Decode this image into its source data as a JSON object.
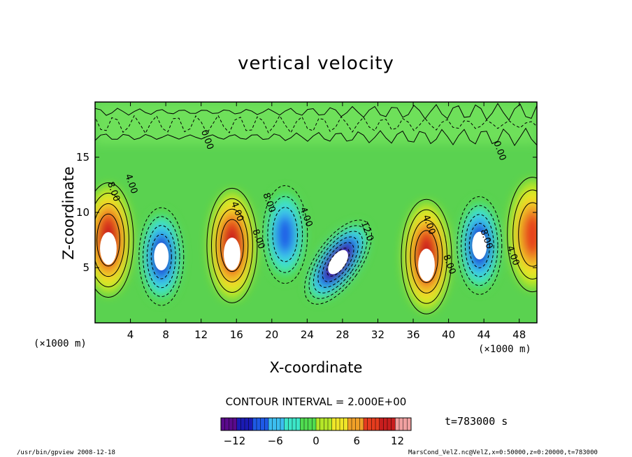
{
  "chart_data": {
    "type": "heatmap",
    "title": "vertical velocity",
    "xlabel": "X-coordinate",
    "ylabel": "Z-coordinate",
    "x_unit": "(×1000 m)",
    "y_unit": "(×1000 m)",
    "xlim": [
      0,
      50
    ],
    "ylim": [
      0,
      20
    ],
    "x_ticks": [
      "4",
      "8",
      "12",
      "16",
      "20",
      "24",
      "28",
      "32",
      "36",
      "40",
      "44",
      "48"
    ],
    "y_ticks": [
      "5",
      "10",
      "15"
    ],
    "contour_interval_text": "CONTOUR INTERVAL = 2.000E+00",
    "colorbar": {
      "ticks": [
        "−12",
        "−6",
        "0",
        "6",
        "12"
      ],
      "values": [
        -12,
        -6,
        0,
        6,
        12
      ],
      "range": [
        -14,
        14
      ],
      "colors": [
        "#5a0a8c",
        "#1a1ab4",
        "#1e5ae6",
        "#3cbef0",
        "#3ce6c8",
        "#50dc50",
        "#b4e628",
        "#f0e628",
        "#f0a028",
        "#e63c1e",
        "#c81e1e",
        "#f0a0a0"
      ]
    },
    "features": [
      {
        "x": 1.5,
        "z": 7.5,
        "w": 8,
        "type": "updraft"
      },
      {
        "x": 7.5,
        "z": 6.0,
        "w": -8,
        "type": "downdraft"
      },
      {
        "x": 15.5,
        "z": 7.0,
        "w": 8,
        "type": "updraft"
      },
      {
        "x": 21.5,
        "z": 8.0,
        "w": -6,
        "type": "downdraft"
      },
      {
        "x": 27.5,
        "z": 5.5,
        "w": -12,
        "type": "downdraft"
      },
      {
        "x": 37.5,
        "z": 6.0,
        "w": 8,
        "type": "updraft"
      },
      {
        "x": 43.5,
        "z": 7.0,
        "w": -8,
        "type": "downdraft"
      },
      {
        "x": 49.5,
        "z": 8.0,
        "w": 6,
        "type": "updraft"
      }
    ],
    "contour_labels": [
      {
        "text": "8.00",
        "x": 1.8,
        "z": 11.8
      },
      {
        "text": "4.00",
        "x": 3.8,
        "z": 12.5
      },
      {
        "text": "4.00",
        "x": 15.8,
        "z": 10.0
      },
      {
        "text": "8.00",
        "x": 18.2,
        "z": 7.5
      },
      {
        "text": "8.00",
        "x": 19.4,
        "z": 10.8
      },
      {
        "text": "4.00",
        "x": 23.6,
        "z": 9.5
      },
      {
        "text": "12.0",
        "x": 30.5,
        "z": 8.2
      },
      {
        "text": "4.00",
        "x": 37.5,
        "z": 8.8
      },
      {
        "text": "8.00",
        "x": 39.8,
        "z": 5.2
      },
      {
        "text": "8.00",
        "x": 44.0,
        "z": 7.5
      },
      {
        "text": "4.00",
        "x": 47.0,
        "z": 6.0
      },
      {
        "text": "0.00",
        "x": 12.4,
        "z": 16.5
      },
      {
        "text": "0.00",
        "x": 45.5,
        "z": 15.5
      }
    ],
    "time_text": "t=783000 s",
    "grid": false
  },
  "footer": {
    "left": "/usr/bin/gpview   2008-12-18",
    "right": "MarsCond_VelZ.nc@VelZ,x=0:50000,z=0:20000,t=783000"
  }
}
